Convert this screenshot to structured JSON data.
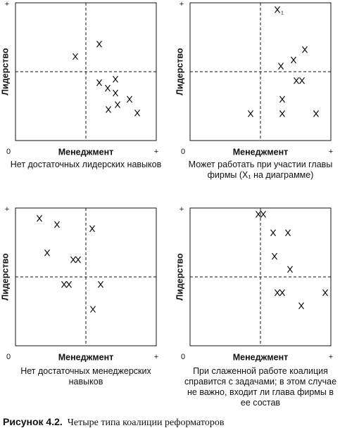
{
  "chart_data": [
    {
      "type": "scatter",
      "xlabel": "Менеджмент",
      "ylabel": "Лидерство",
      "caption": "Нет достаточных лидерских навыков",
      "x": [
        4.25,
        5.95,
        5.95,
        6.55,
        7.1,
        7.1,
        8.1,
        6.6,
        7.25,
        8.65
      ],
      "y": [
        6.1,
        7.0,
        4.2,
        3.8,
        4.45,
        3.45,
        3.0,
        2.25,
        2.6,
        2.0
      ],
      "xlim": [
        0,
        10
      ],
      "ylim": [
        0,
        10
      ],
      "xticks": [
        0,
        {
          "value": 10,
          "label": "+"
        }
      ],
      "yticks": [
        {
          "value": 10,
          "label": "+"
        }
      ]
    },
    {
      "type": "scatter",
      "xlabel": "Менеджмент",
      "ylabel": "Лидерство",
      "caption": "Может работать при участии главы фирмы (X₁ на диаграмме)",
      "x": [
        8.15,
        7.35,
        6.45,
        7.55,
        7.95,
        6.55,
        4.3,
        6.55,
        8.95
      ],
      "y": [
        6.6,
        5.85,
        5.4,
        4.35,
        4.35,
        3.0,
        1.95,
        1.95,
        1.95
      ],
      "highlight": {
        "x": 6.2,
        "y": 9.5,
        "label": "1"
      },
      "xlim": [
        0,
        10
      ],
      "ylim": [
        0,
        10
      ],
      "xticks": [
        0,
        {
          "value": 10,
          "label": "+"
        }
      ],
      "yticks": [
        {
          "value": 10,
          "label": "+"
        }
      ]
    },
    {
      "type": "scatter",
      "xlabel": "Менеджмент",
      "ylabel": "Лидерство",
      "caption": "Нет достаточных менеджерских навыков",
      "x": [
        1.7,
        2.95,
        5.45,
        2.25,
        4.1,
        4.45,
        3.45,
        3.8,
        6.05,
        5.5
      ],
      "y": [
        9.25,
        8.8,
        8.5,
        6.75,
        6.25,
        6.25,
        4.45,
        4.45,
        4.45,
        2.65
      ],
      "xlim": [
        0,
        10
      ],
      "ylim": [
        0,
        10
      ],
      "xticks": [
        0,
        {
          "value": 10,
          "label": "+"
        }
      ],
      "yticks": [
        {
          "value": 10,
          "label": "+"
        }
      ]
    },
    {
      "type": "scatter",
      "xlabel": "Менеджмент",
      "ylabel": "Лидерство",
      "caption": "При слаженной работе коалиция справится с задачами; в этом случае не важно, входит ли глава фирмы в ее состав",
      "x": [
        4.85,
        5.2,
        5.9,
        6.95,
        6.0,
        7.1,
        6.2,
        6.55,
        9.6,
        7.9
      ],
      "y": [
        9.55,
        9.55,
        8.2,
        8.2,
        6.5,
        5.55,
        3.85,
        3.85,
        3.85,
        2.9
      ],
      "xlim": [
        0,
        10
      ],
      "ylim": [
        0,
        10
      ],
      "xticks": [
        0,
        {
          "value": 10,
          "label": "+"
        }
      ],
      "yticks": [
        {
          "value": 10,
          "label": "+"
        }
      ]
    }
  ],
  "figure_caption": {
    "label": "Рисунок 4.2.",
    "text": "Четыре типа коалиции реформаторов"
  }
}
